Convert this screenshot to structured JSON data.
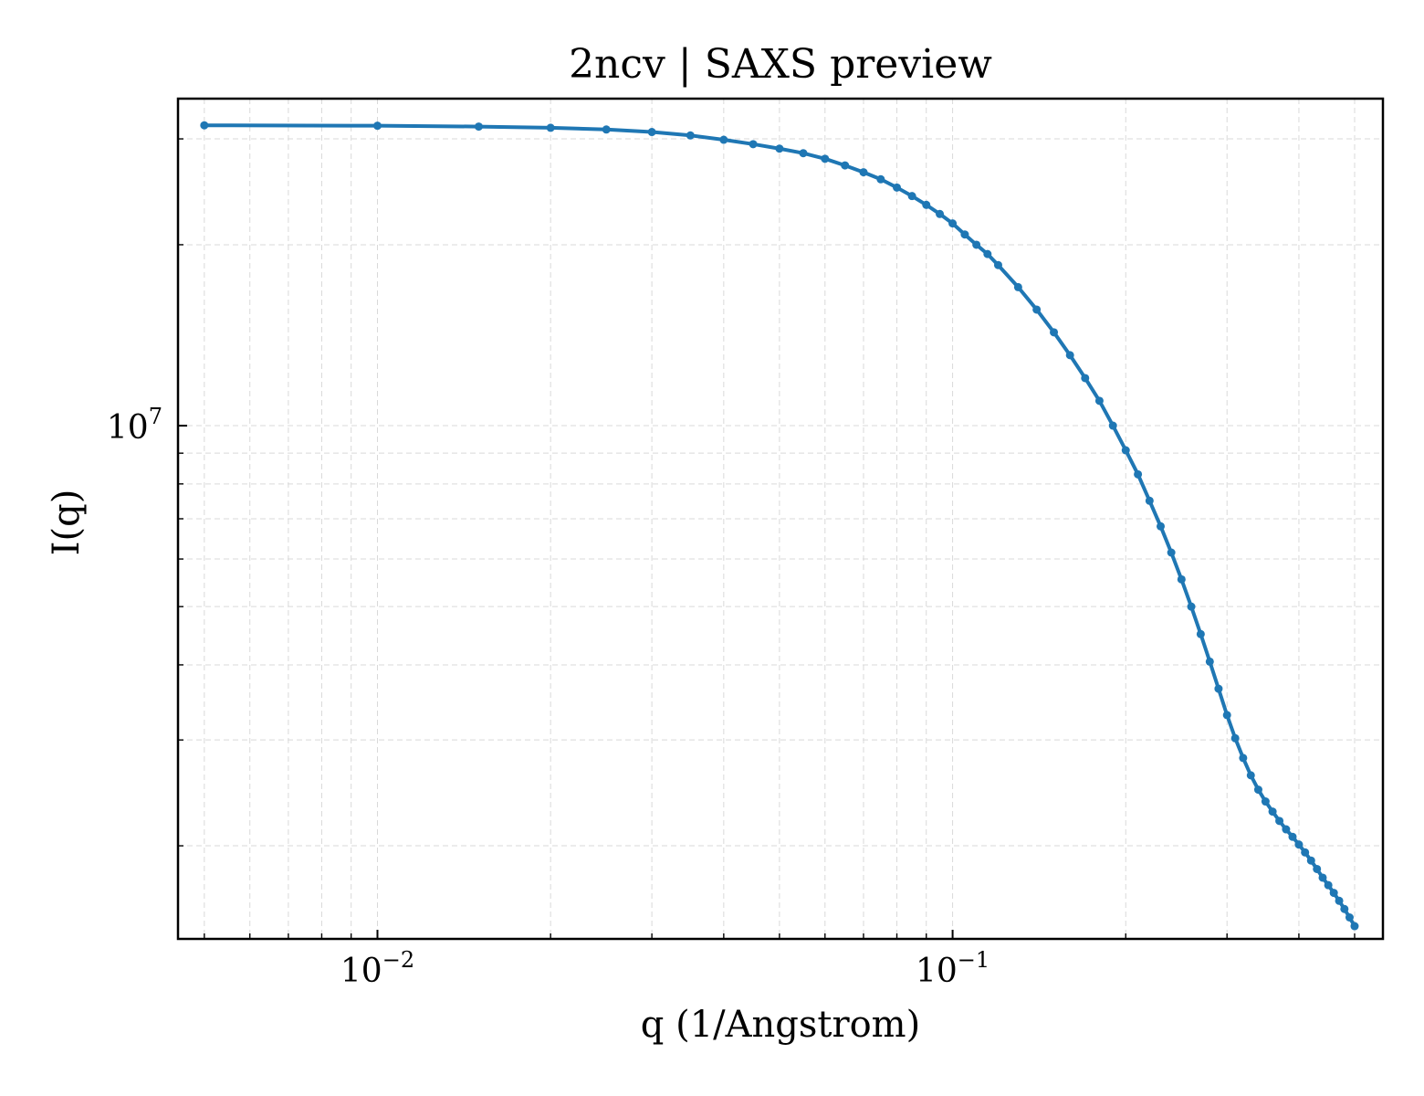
{
  "chart_data": {
    "type": "line",
    "title": "2ncv | SAXS preview",
    "xlabel": "q (1/Angstrom)",
    "ylabel": "I(q)",
    "x_scale": "log",
    "y_scale": "log",
    "xlim": [
      0.0045,
      0.56
    ],
    "ylim": [
      1400000,
      35000000
    ],
    "grid": true,
    "x_ticks": [
      {
        "value": 0.01,
        "base": "10",
        "exp": "−2"
      },
      {
        "value": 0.1,
        "base": "10",
        "exp": "−1"
      }
    ],
    "y_ticks": [
      {
        "value": 10000000,
        "base": "10",
        "exp": "7"
      }
    ],
    "color": "#1f77b4",
    "series": [
      {
        "name": "",
        "points": [
          [
            0.005,
            31600000
          ],
          [
            0.01,
            31550000
          ],
          [
            0.015,
            31450000
          ],
          [
            0.02,
            31300000
          ],
          [
            0.025,
            31100000
          ],
          [
            0.03,
            30800000
          ],
          [
            0.035,
            30400000
          ],
          [
            0.04,
            29900000
          ],
          [
            0.045,
            29400000
          ],
          [
            0.05,
            28900000
          ],
          [
            0.055,
            28400000
          ],
          [
            0.06,
            27800000
          ],
          [
            0.065,
            27100000
          ],
          [
            0.07,
            26400000
          ],
          [
            0.075,
            25700000
          ],
          [
            0.08,
            24900000
          ],
          [
            0.085,
            24100000
          ],
          [
            0.09,
            23300000
          ],
          [
            0.095,
            22500000
          ],
          [
            0.1,
            21700000
          ],
          [
            0.105,
            20800000
          ],
          [
            0.11,
            20000000
          ],
          [
            0.115,
            19300000
          ],
          [
            0.12,
            18500000
          ],
          [
            0.13,
            17000000
          ],
          [
            0.14,
            15600000
          ],
          [
            0.15,
            14300000
          ],
          [
            0.16,
            13100000
          ],
          [
            0.17,
            12000000
          ],
          [
            0.18,
            11000000
          ],
          [
            0.19,
            10000000
          ],
          [
            0.2,
            9100000
          ],
          [
            0.21,
            8300000
          ],
          [
            0.22,
            7500000
          ],
          [
            0.23,
            6800000
          ],
          [
            0.24,
            6150000
          ],
          [
            0.25,
            5550000
          ],
          [
            0.26,
            5000000
          ],
          [
            0.27,
            4500000
          ],
          [
            0.28,
            4050000
          ],
          [
            0.29,
            3650000
          ],
          [
            0.3,
            3300000
          ],
          [
            0.31,
            3020000
          ],
          [
            0.32,
            2800000
          ],
          [
            0.33,
            2620000
          ],
          [
            0.34,
            2480000
          ],
          [
            0.35,
            2370000
          ],
          [
            0.36,
            2280000
          ],
          [
            0.37,
            2200000
          ],
          [
            0.38,
            2130000
          ],
          [
            0.39,
            2070000
          ],
          [
            0.4,
            2010000
          ],
          [
            0.41,
            1950000
          ],
          [
            0.42,
            1890000
          ],
          [
            0.43,
            1830000
          ],
          [
            0.44,
            1770000
          ],
          [
            0.45,
            1720000
          ],
          [
            0.46,
            1670000
          ],
          [
            0.47,
            1620000
          ],
          [
            0.48,
            1570000
          ],
          [
            0.49,
            1520000
          ],
          [
            0.5,
            1470000
          ]
        ]
      }
    ]
  }
}
